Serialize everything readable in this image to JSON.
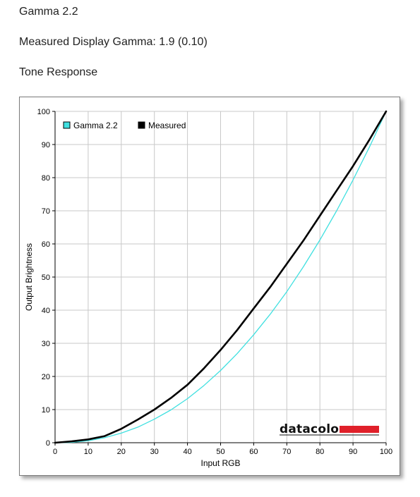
{
  "header": {
    "gamma_target": "Gamma 2.2",
    "measured": "Measured Display Gamma: 1.9 (0.10)",
    "section": "Tone Response"
  },
  "logo": {
    "text": "datacolor",
    "bar_color": "#e0202a"
  },
  "chart_data": {
    "type": "line",
    "xlabel": "Input RGB",
    "ylabel": "Output Brightness",
    "xlim": [
      0,
      100
    ],
    "ylim": [
      0,
      100
    ],
    "x_ticks": [
      0,
      10,
      20,
      30,
      40,
      50,
      60,
      70,
      80,
      90,
      100
    ],
    "y_ticks": [
      0,
      10,
      20,
      30,
      40,
      50,
      60,
      70,
      80,
      90,
      100
    ],
    "grid": true,
    "legend_position": "top-left",
    "series": [
      {
        "name": "Gamma 2.2",
        "color": "#40e0e0",
        "x": [
          0,
          5,
          10,
          15,
          20,
          25,
          30,
          35,
          40,
          45,
          50,
          55,
          60,
          65,
          70,
          75,
          80,
          85,
          90,
          95,
          100
        ],
        "y": [
          0,
          0.1,
          0.6,
          1.5,
          2.9,
          4.7,
          7.1,
          9.9,
          13.3,
          17.3,
          21.8,
          26.9,
          32.6,
          38.8,
          45.6,
          53.1,
          61.2,
          69.9,
          79.3,
          89.3,
          100
        ]
      },
      {
        "name": "Measured",
        "color": "#000000",
        "x": [
          0,
          5,
          10,
          15,
          20,
          25,
          30,
          35,
          40,
          45,
          50,
          55,
          60,
          65,
          70,
          75,
          80,
          85,
          90,
          95,
          100
        ],
        "y": [
          0,
          0.4,
          1.0,
          2.0,
          4.2,
          7.0,
          10.0,
          13.5,
          17.5,
          22.5,
          28.0,
          34.0,
          40.5,
          47.0,
          54.0,
          61.0,
          68.5,
          76.0,
          83.5,
          91.5,
          100
        ]
      }
    ]
  }
}
